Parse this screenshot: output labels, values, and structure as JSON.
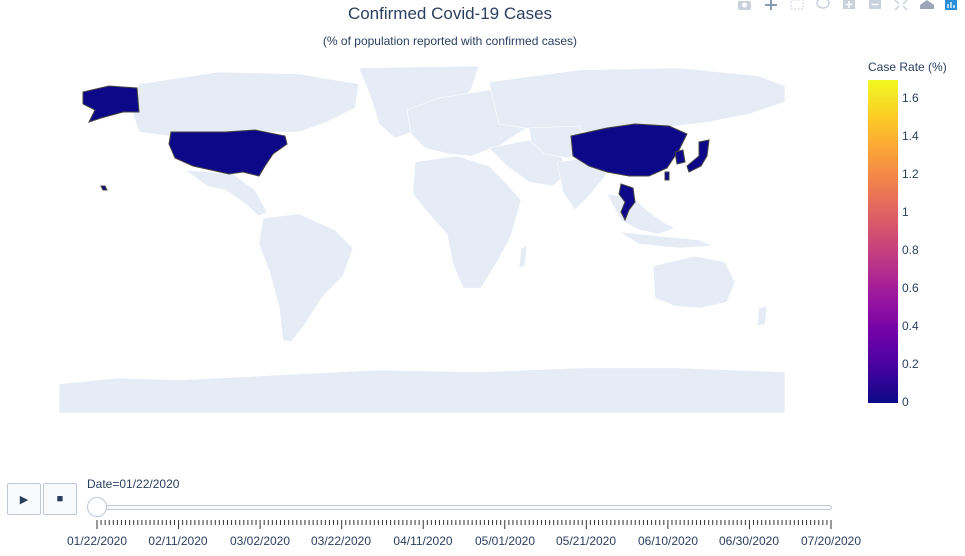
{
  "chart": {
    "title": "Confirmed Covid-19 Cases",
    "subtitle": "(% of population reported with confirmed cases)"
  },
  "chart_data": {
    "type": "choropleth",
    "frame_date": "01/22/2020",
    "highlighted_regions": [
      {
        "name": "United States",
        "value": 0.0
      },
      {
        "name": "China",
        "value": 0.0
      },
      {
        "name": "Japan",
        "value": 0.0
      },
      {
        "name": "South Korea",
        "value": 0.0
      },
      {
        "name": "Thailand",
        "value": 0.0
      },
      {
        "name": "Taiwan",
        "value": 0.0
      }
    ],
    "land_color": "#e5ecf6",
    "colorbar": {
      "title": "Case Rate (%)",
      "range": [
        0,
        1.7
      ],
      "ticks": [
        "1.6",
        "1.4",
        "1.2",
        "1",
        "0.8",
        "0.6",
        "0.4",
        "0.2",
        "0"
      ],
      "colors": [
        "#0d0887",
        "#46039f",
        "#7201a8",
        "#9c179e",
        "#bd3786",
        "#d8576b",
        "#ed7953",
        "#fb9f3a",
        "#fdca26",
        "#f0f921"
      ]
    }
  },
  "slider": {
    "label": "Date=01/22/2020",
    "selected_index": 0,
    "dates": [
      "01/22/2020",
      "02/11/2020",
      "03/02/2020",
      "03/22/2020",
      "04/11/2020",
      "05/01/2020",
      "05/21/2020",
      "06/10/2020",
      "06/30/2020",
      "07/20/2020"
    ]
  },
  "controls": {
    "play_symbol": "▶",
    "stop_symbol": "■"
  },
  "modebar_icons": [
    "camera-icon",
    "pan-icon",
    "box-select-icon",
    "lasso-icon",
    "zoom-in-icon",
    "zoom-out-icon",
    "reset-icon",
    "home-icon",
    "plotly-logo-icon"
  ]
}
